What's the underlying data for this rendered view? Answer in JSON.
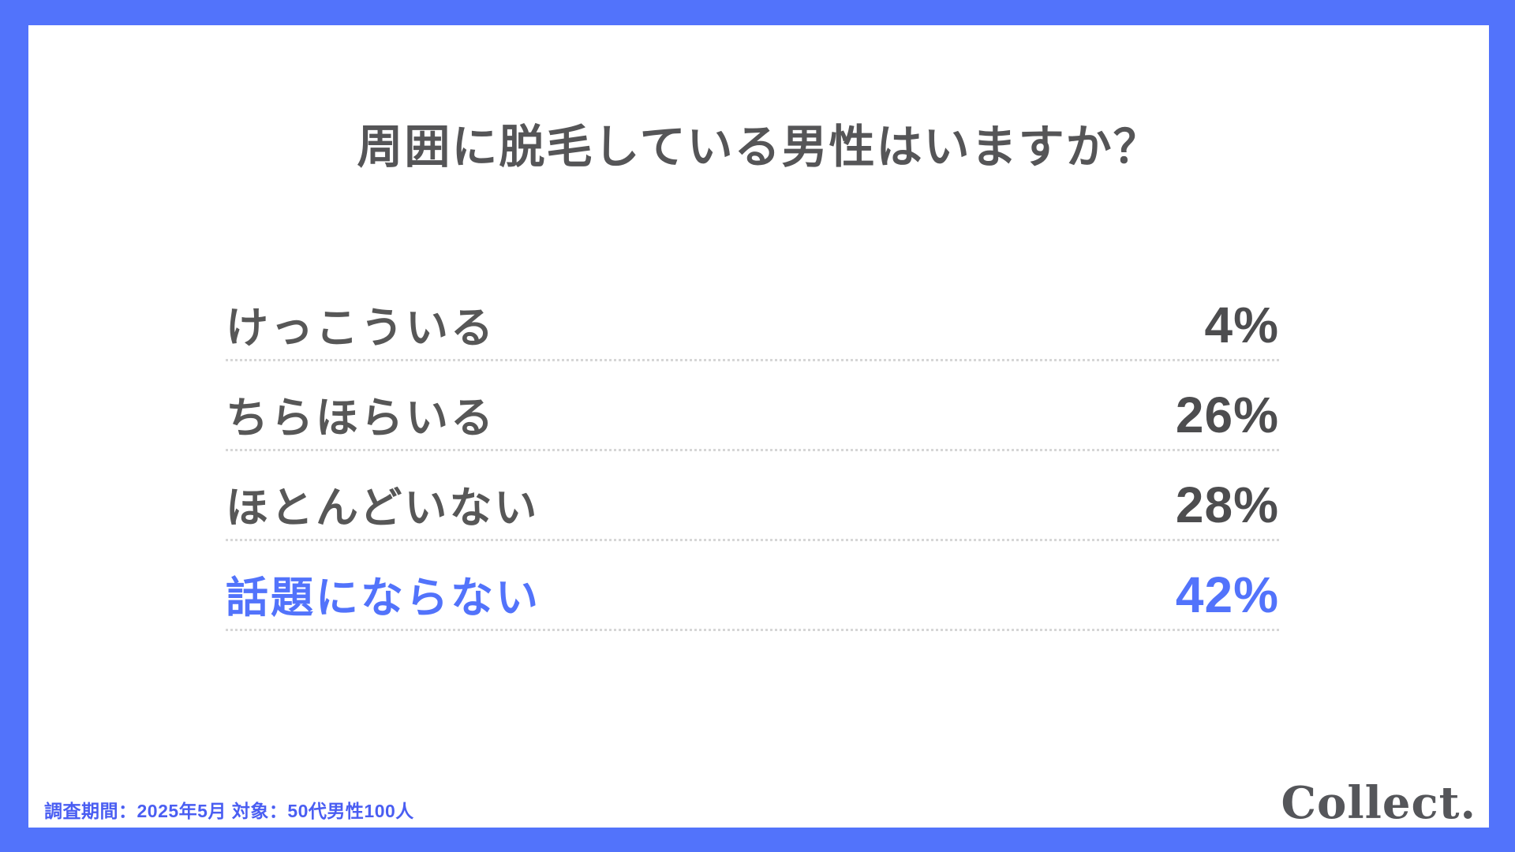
{
  "title": "周囲に脱毛している男性はいますか？",
  "survey": {
    "rows": [
      {
        "label": "けっこういる",
        "value": "4%"
      },
      {
        "label": "ちらほらいる",
        "value": "26%"
      },
      {
        "label": "ほとんどいない",
        "value": "28%"
      },
      {
        "label": "話題にならない",
        "value": "42%"
      }
    ]
  },
  "footer": {
    "note": "調査期間：2025年5月  対象：50代男性100人",
    "logo": "Collect."
  },
  "colors": {
    "accent_blue": "#5273fb",
    "text_gray": "#575757",
    "highlight_blue": "#5273fb",
    "dotted_line": "#d6d6d6"
  },
  "chart_data": {
    "type": "table",
    "title": "周囲に脱毛している男性はいますか？",
    "categories": [
      "けっこういる",
      "ちらほらいる",
      "ほとんどいない",
      "話題にならない"
    ],
    "values": [
      4,
      26,
      28,
      42
    ],
    "unit": "%",
    "highlighted_category": "話題にならない",
    "highlighted_value": 42,
    "legend_position": "none",
    "grid": "dotted row separators",
    "source_note": "調査期間：2025年5月  対象：50代男性100人",
    "brand": "Collect."
  }
}
